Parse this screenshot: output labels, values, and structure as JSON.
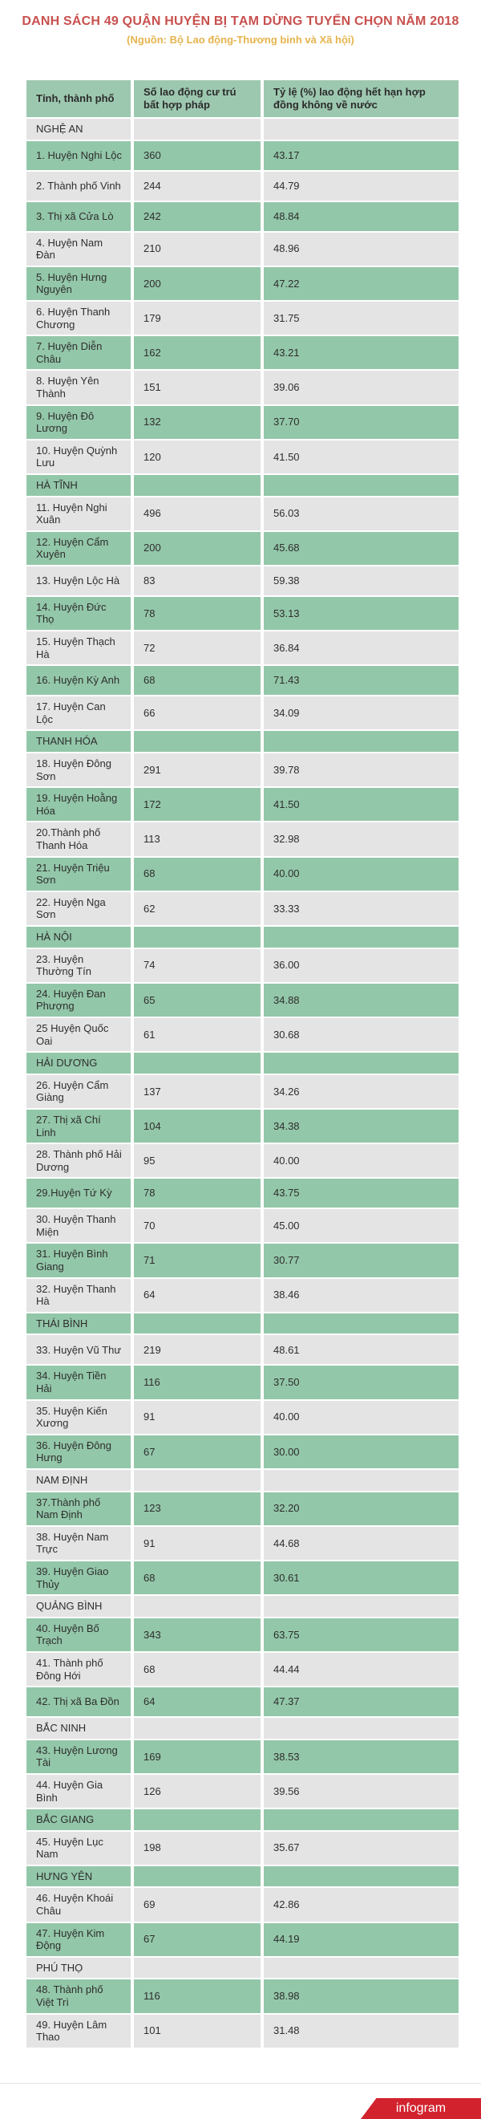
{
  "title": "DANH SÁCH 49 QUẬN HUYỆN BỊ TẠM DỪNG TUYỂN CHỌN NĂM 2018",
  "subtitle": "(Nguồn: Bộ Lao động-Thương binh và Xã hội)",
  "colors": {
    "title_red": "#c8504e",
    "subtitle_gold": "#e6b44e",
    "header_green": "#9dc8b0",
    "row_green": "#93c7a9",
    "row_gray": "#e4e4e4",
    "text": "#2e2e2e",
    "logo_red": "#d2222e"
  },
  "footer": {
    "logo_text": "infogram"
  },
  "chart_data": {
    "type": "table",
    "title": "DANH SÁCH 49 QUẬN HUYỆN BỊ TẠM DỪNG TUYỂN CHỌN NĂM 2018",
    "subtitle": "(Nguồn: Bộ Lao động-Thương binh và Xã hội)",
    "columns": [
      "Tỉnh, thành phố",
      "Số lao động cư trú bất hợp pháp",
      "Tỷ lệ (%) lao động hết hạn hợp đồng không về nước"
    ],
    "rows": [
      {
        "kind": "section",
        "label": "NGHỆ AN",
        "shade": "gray"
      },
      {
        "kind": "data",
        "label": "1. Huyện Nghi Lộc",
        "workers": "360",
        "rate": "43.17",
        "shade": "green"
      },
      {
        "kind": "data",
        "label": "2. Thành phố Vinh",
        "workers": "244",
        "rate": "44.79",
        "shade": "gray"
      },
      {
        "kind": "data",
        "label": "3. Thị xã Cửa Lò",
        "workers": "242",
        "rate": "48.84",
        "shade": "green"
      },
      {
        "kind": "data",
        "label": "4. Huyện Nam Đàn",
        "workers": "210",
        "rate": "48.96",
        "shade": "gray"
      },
      {
        "kind": "data",
        "label": "5. Huyện Hưng Nguyên",
        "workers": "200",
        "rate": "47.22",
        "shade": "green"
      },
      {
        "kind": "data",
        "label": "6. Huyện Thanh Chương",
        "workers": "179",
        "rate": "31.75",
        "shade": "gray"
      },
      {
        "kind": "data",
        "label": "7. Huyện Diễn Châu",
        "workers": "162",
        "rate": "43.21",
        "shade": "green"
      },
      {
        "kind": "data",
        "label": "8. Huyện Yên Thành",
        "workers": "151",
        "rate": "39.06",
        "shade": "gray"
      },
      {
        "kind": "data",
        "label": "9. Huyện Đô Lương",
        "workers": "132",
        "rate": "37.70",
        "shade": "green"
      },
      {
        "kind": "data",
        "label": "10. Huyện Quỳnh Lưu",
        "workers": "120",
        "rate": "41.50",
        "shade": "gray"
      },
      {
        "kind": "section",
        "label": "HÀ TĨNH",
        "shade": "green"
      },
      {
        "kind": "data",
        "label": "11. Huyện Nghi Xuân",
        "workers": "496",
        "rate": "56.03",
        "shade": "gray"
      },
      {
        "kind": "data",
        "label": "12. Huyện Cẩm Xuyên",
        "workers": "200",
        "rate": "45.68",
        "shade": "green"
      },
      {
        "kind": "data",
        "label": "13. Huyện Lộc Hà",
        "workers": "83",
        "rate": "59.38",
        "shade": "gray"
      },
      {
        "kind": "data",
        "label": "14. Huyện Đức Thọ",
        "workers": "78",
        "rate": "53.13",
        "shade": "green"
      },
      {
        "kind": "data",
        "label": "15. Huyện Thạch Hà",
        "workers": "72",
        "rate": "36.84",
        "shade": "gray"
      },
      {
        "kind": "data",
        "label": "16. Huyện Kỳ Anh",
        "workers": "68",
        "rate": "71.43",
        "shade": "green"
      },
      {
        "kind": "data",
        "label": "17. Huyện Can Lộc",
        "workers": "66",
        "rate": "34.09",
        "shade": "gray"
      },
      {
        "kind": "section",
        "label": "THANH HÓA",
        "shade": "green"
      },
      {
        "kind": "data",
        "label": "18. Huyện Đông Sơn",
        "workers": "291",
        "rate": "39.78",
        "shade": "gray"
      },
      {
        "kind": "data",
        "label": "19. Huyện Hoằng Hóa",
        "workers": "172",
        "rate": "41.50",
        "shade": "green"
      },
      {
        "kind": "data",
        "label": "20.Thành phố Thanh Hóa",
        "workers": "113",
        "rate": "32.98",
        "shade": "gray"
      },
      {
        "kind": "data",
        "label": "21. Huyện Triệu Sơn",
        "workers": "68",
        "rate": "40.00",
        "shade": "green"
      },
      {
        "kind": "data",
        "label": "22. Huyện Nga Sơn",
        "workers": "62",
        "rate": "33.33",
        "shade": "gray"
      },
      {
        "kind": "section",
        "label": "HÀ NỘI",
        "shade": "green"
      },
      {
        "kind": "data",
        "label": "23. Huyện Thường Tín",
        "workers": "74",
        "rate": "36.00",
        "shade": "gray"
      },
      {
        "kind": "data",
        "label": "24. Huyện Đan Phượng",
        "workers": "65",
        "rate": "34.88",
        "shade": "green"
      },
      {
        "kind": "data",
        "label": "25 Huyện Quốc Oai",
        "workers": "61",
        "rate": "30.68",
        "shade": "gray"
      },
      {
        "kind": "section",
        "label": "HẢI DƯƠNG",
        "shade": "green"
      },
      {
        "kind": "data",
        "label": "26. Huyện Cẩm Giàng",
        "workers": "137",
        "rate": "34.26",
        "shade": "gray"
      },
      {
        "kind": "data",
        "label": "27. Thị xã Chí Linh",
        "workers": "104",
        "rate": "34.38",
        "shade": "green"
      },
      {
        "kind": "data",
        "label": "28. Thành phố Hải Dương",
        "workers": "95",
        "rate": "40.00",
        "shade": "gray"
      },
      {
        "kind": "data",
        "label": "29.Huyện Tứ Kỳ",
        "workers": "78",
        "rate": "43.75",
        "shade": "green"
      },
      {
        "kind": "data",
        "label": "30. Huyện Thanh Miện",
        "workers": "70",
        "rate": "45.00",
        "shade": "gray"
      },
      {
        "kind": "data",
        "label": "31. Huyện Bình Giang",
        "workers": "71",
        "rate": "30.77",
        "shade": "green"
      },
      {
        "kind": "data",
        "label": "32. Huyện Thanh Hà",
        "workers": "64",
        "rate": "38.46",
        "shade": "gray"
      },
      {
        "kind": "section",
        "label": "THÁI BÌNH",
        "shade": "green"
      },
      {
        "kind": "data",
        "label": "33. Huyện Vũ Thư",
        "workers": "219",
        "rate": "48.61",
        "shade": "gray"
      },
      {
        "kind": "data",
        "label": "34. Huyện Tiền Hải",
        "workers": "116",
        "rate": "37.50",
        "shade": "green"
      },
      {
        "kind": "data",
        "label": "35. Huyện Kiến Xương",
        "workers": "91",
        "rate": "40.00",
        "shade": "gray"
      },
      {
        "kind": "data",
        "label": "36. Huyện Đông Hưng",
        "workers": "67",
        "rate": "30.00",
        "shade": "green"
      },
      {
        "kind": "section",
        "label": "NAM ĐỊNH",
        "shade": "gray"
      },
      {
        "kind": "data",
        "label": "37.Thành phố Nam Định",
        "workers": "123",
        "rate": "32.20",
        "shade": "green"
      },
      {
        "kind": "data",
        "label": "38. Huyện Nam Trực",
        "workers": "91",
        "rate": "44.68",
        "shade": "gray"
      },
      {
        "kind": "data",
        "label": "39. Huyện Giao Thủy",
        "workers": "68",
        "rate": "30.61",
        "shade": "green"
      },
      {
        "kind": "section",
        "label": "QUẢNG BÌNH",
        "shade": "gray"
      },
      {
        "kind": "data",
        "label": "40. Huyện Bố Trạch",
        "workers": "343",
        "rate": "63.75",
        "shade": "green"
      },
      {
        "kind": "data",
        "label": "41. Thành phố Đông Hới",
        "workers": "68",
        "rate": "44.44",
        "shade": "gray"
      },
      {
        "kind": "data",
        "label": "42. Thị xã Ba Đồn",
        "workers": "64",
        "rate": "47.37",
        "shade": "green"
      },
      {
        "kind": "section",
        "label": "BẮC NINH",
        "shade": "gray"
      },
      {
        "kind": "data",
        "label": "43. Huyện Lương Tài",
        "workers": "169",
        "rate": "38.53",
        "shade": "green"
      },
      {
        "kind": "data",
        "label": "44. Huyện Gia Bình",
        "workers": "126",
        "rate": "39.56",
        "shade": "gray"
      },
      {
        "kind": "section",
        "label": "BẮC GIANG",
        "shade": "green"
      },
      {
        "kind": "data",
        "label": "45. Huyện Lục Nam",
        "workers": "198",
        "rate": "35.67",
        "shade": "gray"
      },
      {
        "kind": "section",
        "label": "HƯNG YÊN",
        "shade": "green"
      },
      {
        "kind": "data",
        "label": "46. Huyện Khoái Châu",
        "workers": "69",
        "rate": "42.86",
        "shade": "gray"
      },
      {
        "kind": "data",
        "label": "47. Huyện Kim Động",
        "workers": "67",
        "rate": "44.19",
        "shade": "green"
      },
      {
        "kind": "section",
        "label": "PHÚ THỌ",
        "shade": "gray"
      },
      {
        "kind": "data",
        "label": "48. Thành phố Việt Trì",
        "workers": "116",
        "rate": "38.98",
        "shade": "green"
      },
      {
        "kind": "data",
        "label": "49. Huyện Lâm Thao",
        "workers": "101",
        "rate": "31.48",
        "shade": "gray"
      }
    ]
  }
}
